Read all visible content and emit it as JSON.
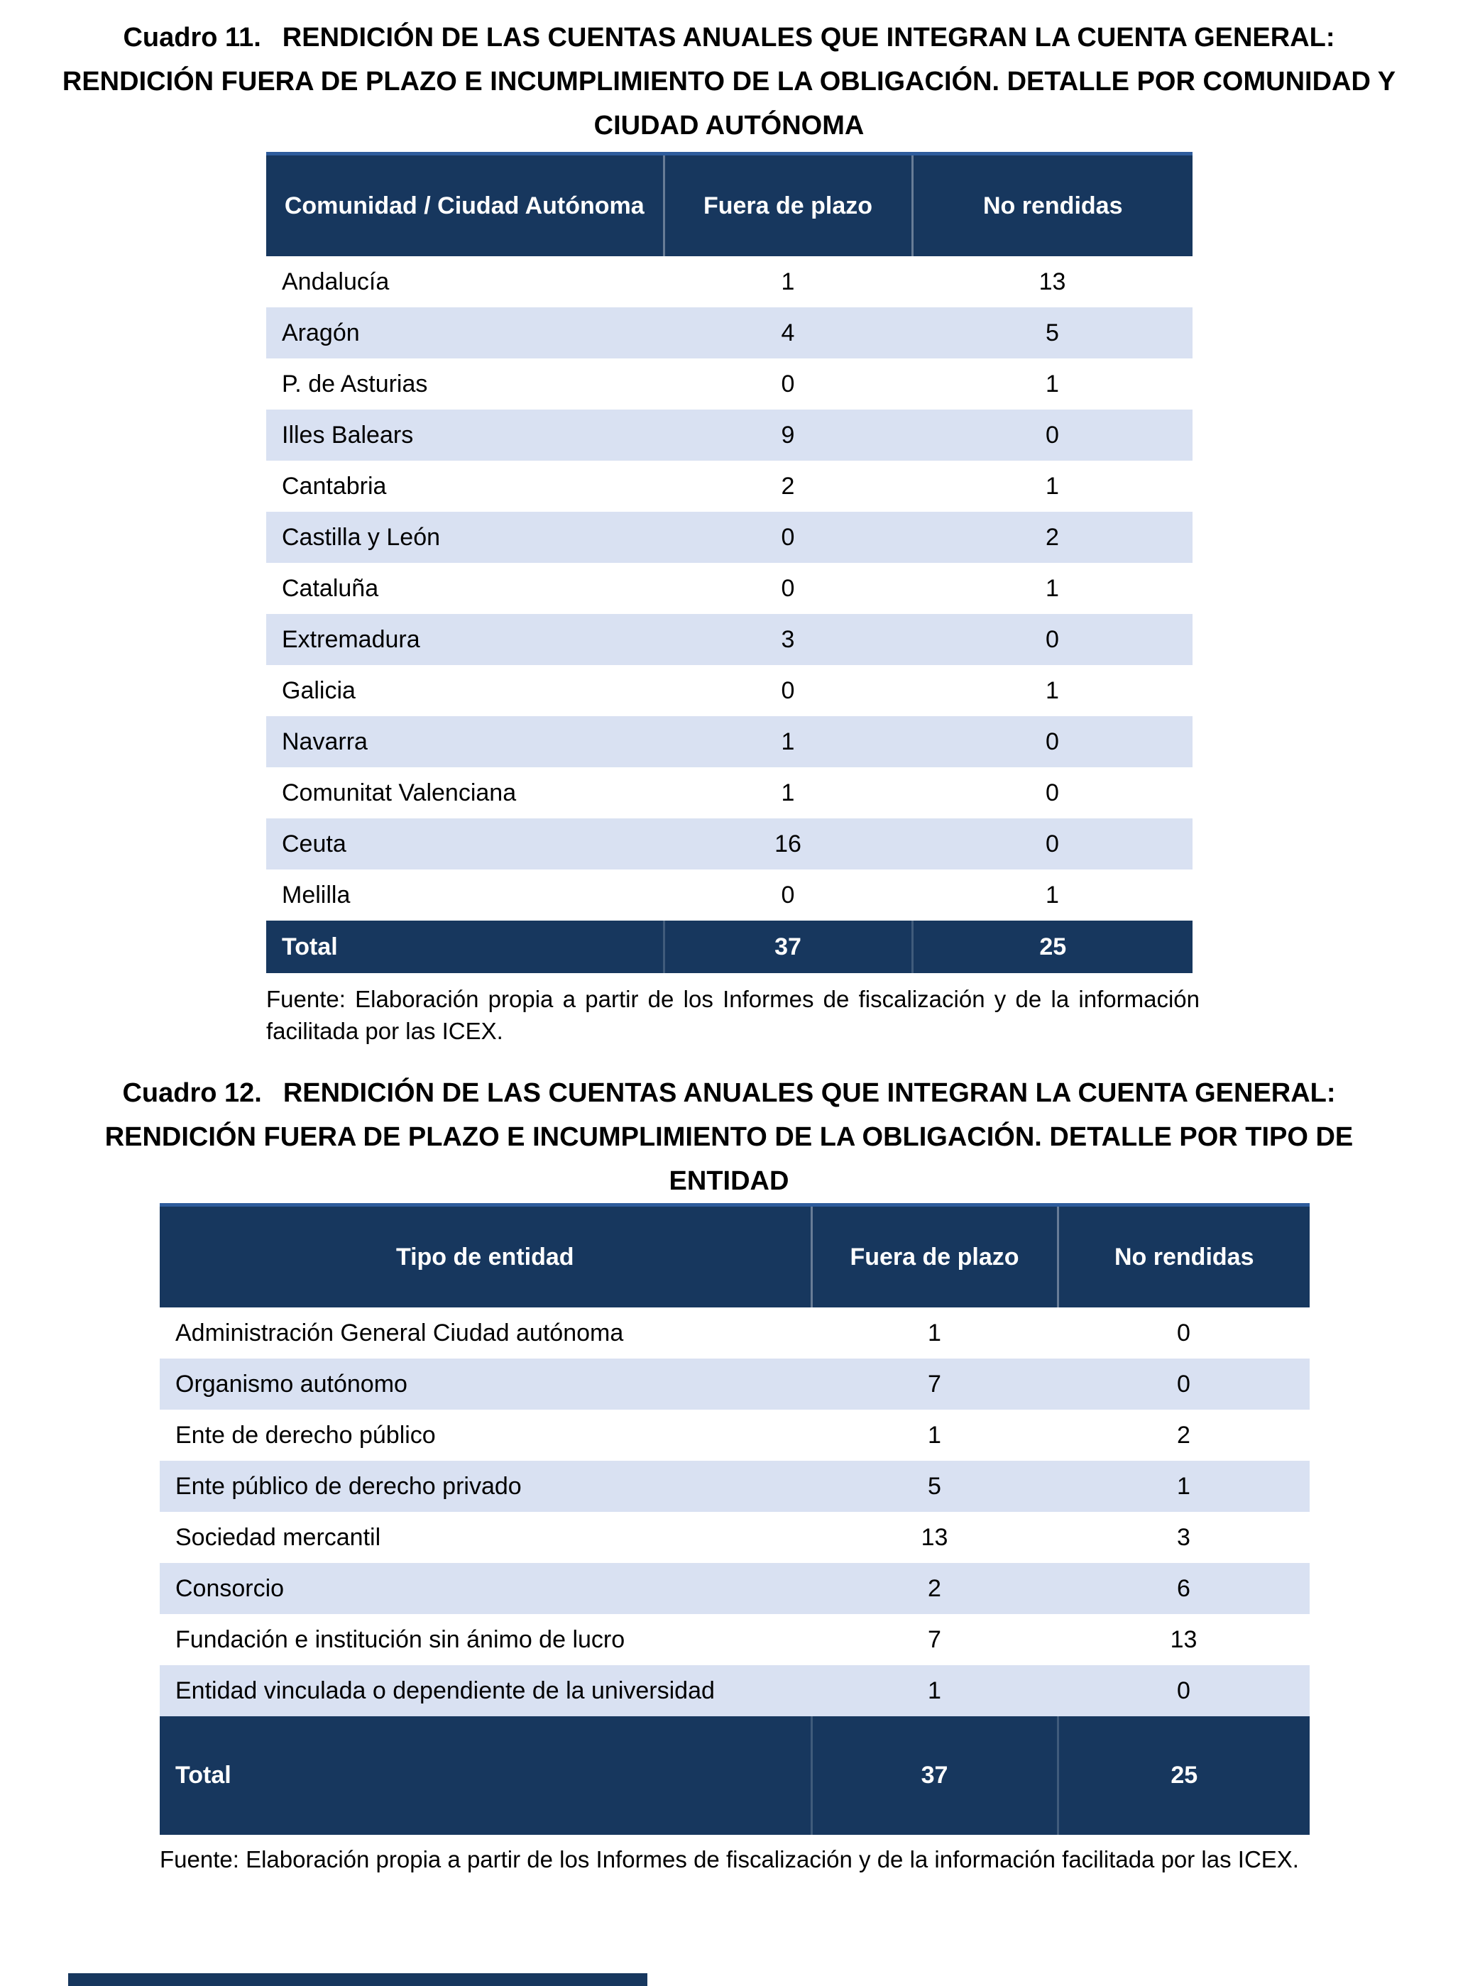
{
  "colors": {
    "header_bg": "#17375E",
    "stripe_bg": "#D9E1F2",
    "row_bg": "#FFFFFF",
    "header_text": "#FFFFFF",
    "body_text": "#000000",
    "table_top_border": "#2E5C9C"
  },
  "cuadro11": {
    "label": "Cuadro 11.",
    "title": "RENDICIÓN DE LAS CUENTAS ANUALES QUE INTEGRAN LA CUENTA GENERAL: RENDICIÓN FUERA DE PLAZO E INCUMPLIMIENTO DE LA OBLIGACIÓN. DETALLE POR COMUNIDAD Y CIUDAD AUTÓNOMA",
    "table": {
      "columns": [
        "Comunidad / Ciudad Autónoma",
        "Fuera de plazo",
        "No rendidas"
      ],
      "rows": [
        [
          "Andalucía",
          "1",
          "13"
        ],
        [
          "Aragón",
          "4",
          "5"
        ],
        [
          "P. de Asturias",
          "0",
          "1"
        ],
        [
          "Illes Balears",
          "9",
          "0"
        ],
        [
          "Cantabria",
          "2",
          "1"
        ],
        [
          "Castilla y León",
          "0",
          "2"
        ],
        [
          "Cataluña",
          "0",
          "1"
        ],
        [
          "Extremadura",
          "3",
          "0"
        ],
        [
          "Galicia",
          "0",
          "1"
        ],
        [
          "Navarra",
          "1",
          "0"
        ],
        [
          "Comunitat Valenciana",
          "1",
          "0"
        ],
        [
          "Ceuta",
          "16",
          "0"
        ],
        [
          "Melilla",
          "0",
          "1"
        ]
      ],
      "total": [
        "Total",
        "37",
        "25"
      ]
    },
    "fuente": "Fuente: Elaboración propia a partir de los Informes de fiscalización y de la información facilitada por las ICEX."
  },
  "cuadro12": {
    "label": "Cuadro 12.",
    "title": "RENDICIÓN DE LAS CUENTAS ANUALES QUE INTEGRAN LA CUENTA GENERAL: RENDICIÓN FUERA DE PLAZO E INCUMPLIMIENTO DE LA OBLIGACIÓN. DETALLE POR TIPO DE ENTIDAD",
    "table": {
      "columns": [
        "Tipo de entidad",
        "Fuera de plazo",
        "No rendidas"
      ],
      "rows": [
        [
          "Administración General Ciudad autónoma",
          "1",
          "0"
        ],
        [
          "Organismo autónomo",
          "7",
          "0"
        ],
        [
          "Ente de derecho público",
          "1",
          "2"
        ],
        [
          "Ente público de derecho privado",
          "5",
          "1"
        ],
        [
          "Sociedad mercantil",
          "13",
          "3"
        ],
        [
          "Consorcio",
          "2",
          "6"
        ],
        [
          "Fundación e institución sin ánimo de lucro",
          "7",
          "13"
        ],
        [
          "Entidad vinculada o dependiente de la universidad",
          "1",
          "0"
        ]
      ],
      "total": [
        "Total",
        "37",
        "25"
      ]
    },
    "fuente": "Fuente: Elaboración propia a partir de los Informes de fiscalización y de la información facilitada por las ICEX."
  }
}
